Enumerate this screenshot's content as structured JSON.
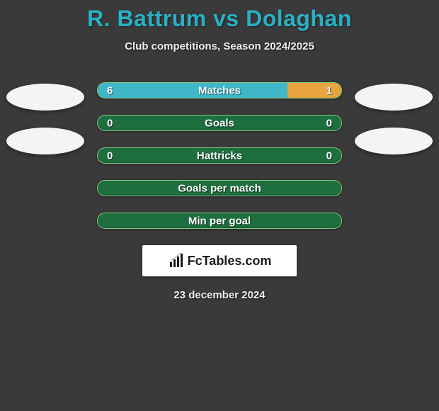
{
  "title": "R. Battrum vs Dolaghan",
  "subtitle": "Club competitions, Season 2024/2025",
  "date": "23 december 2024",
  "logo_text": "FcTables.com",
  "colors": {
    "bar_empty_bg": "#1e6f3f",
    "bar_empty_border": "#8ac986",
    "fill_teal": "#3fb7c8",
    "fill_orange": "#e8a43e"
  },
  "bars": [
    {
      "label": "Matches",
      "left_val": "6",
      "right_val": "1",
      "left_fill_pct": 78,
      "left_fill_color": "#3fb7c8",
      "right_fill_pct": 22,
      "right_fill_color": "#e8a43e"
    },
    {
      "label": "Goals",
      "left_val": "0",
      "right_val": "0",
      "left_fill_pct": 0,
      "left_fill_color": "#3fb7c8",
      "right_fill_pct": 0,
      "right_fill_color": "#e8a43e"
    },
    {
      "label": "Hattricks",
      "left_val": "0",
      "right_val": "0",
      "left_fill_pct": 0,
      "left_fill_color": "#3fb7c8",
      "right_fill_pct": 0,
      "right_fill_color": "#e8a43e"
    },
    {
      "label": "Goals per match",
      "left_val": "",
      "right_val": "",
      "left_fill_pct": 0,
      "left_fill_color": "#3fb7c8",
      "right_fill_pct": 0,
      "right_fill_color": "#e8a43e"
    },
    {
      "label": "Min per goal",
      "left_val": "",
      "right_val": "",
      "left_fill_pct": 0,
      "left_fill_color": "#3fb7c8",
      "right_fill_pct": 0,
      "right_fill_color": "#e8a43e"
    }
  ]
}
